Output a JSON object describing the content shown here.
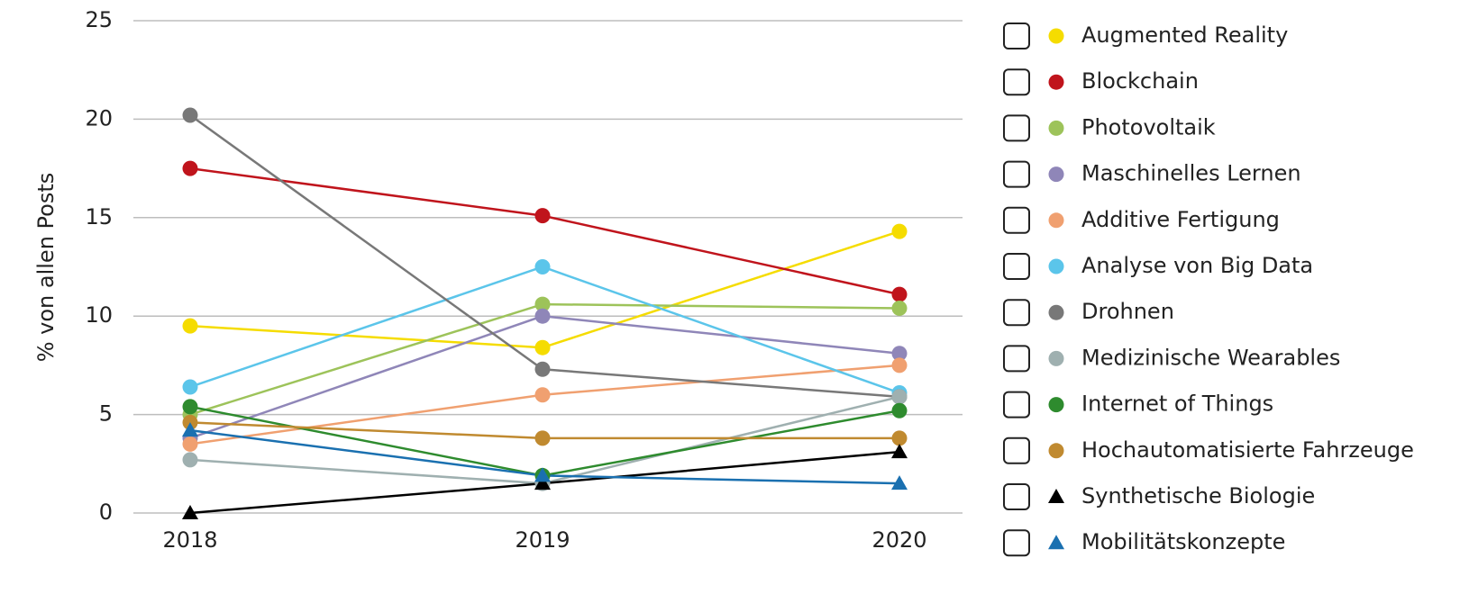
{
  "chart_data": {
    "type": "line",
    "y_label": "% von allen Posts",
    "categories": [
      "2018",
      "2019",
      "2020"
    ],
    "ylim": [
      0,
      25
    ],
    "yticks": [
      0,
      5,
      10,
      15,
      20,
      25
    ],
    "grid": true,
    "series": [
      {
        "name": "Augmented Reality",
        "color": "#f5dc00",
        "marker": "circle",
        "values": [
          9.5,
          8.4,
          14.3
        ]
      },
      {
        "name": "Blockchain",
        "color": "#c0141c",
        "marker": "circle",
        "values": [
          17.5,
          15.1,
          11.1
        ]
      },
      {
        "name": "Photovoltaik",
        "color": "#9dc35a",
        "marker": "circle",
        "values": [
          5.0,
          10.6,
          10.4
        ]
      },
      {
        "name": "Maschinelles Lernen",
        "color": "#8f86b8",
        "marker": "circle",
        "values": [
          3.8,
          10.0,
          8.1
        ]
      },
      {
        "name": "Additive Fertigung",
        "color": "#f0a070",
        "marker": "circle",
        "values": [
          3.5,
          6.0,
          7.5
        ]
      },
      {
        "name": "Analyse von Big Data",
        "color": "#5bc5ea",
        "marker": "circle",
        "values": [
          6.4,
          12.5,
          6.1
        ]
      },
      {
        "name": "Drohnen",
        "color": "#787878",
        "marker": "circle",
        "values": [
          20.2,
          7.3,
          5.9
        ]
      },
      {
        "name": "Medizinische Wearables",
        "color": "#9fb0b0",
        "marker": "circle",
        "values": [
          2.7,
          1.5,
          5.9
        ]
      },
      {
        "name": "Internet of Things",
        "color": "#2e8b2e",
        "marker": "circle",
        "values": [
          5.4,
          1.9,
          5.2
        ]
      },
      {
        "name": "Hochautomatisierte Fahrzeuge",
        "color": "#c08a30",
        "marker": "circle",
        "values": [
          4.6,
          3.8,
          3.8
        ]
      },
      {
        "name": "Synthetische Biologie",
        "color": "#000000",
        "marker": "triangle",
        "values": [
          0.0,
          1.5,
          3.1
        ]
      },
      {
        "name": "Mobilitätskonzepte",
        "color": "#1a70b0",
        "marker": "triangle",
        "values": [
          4.2,
          1.9,
          1.5
        ]
      }
    ]
  }
}
